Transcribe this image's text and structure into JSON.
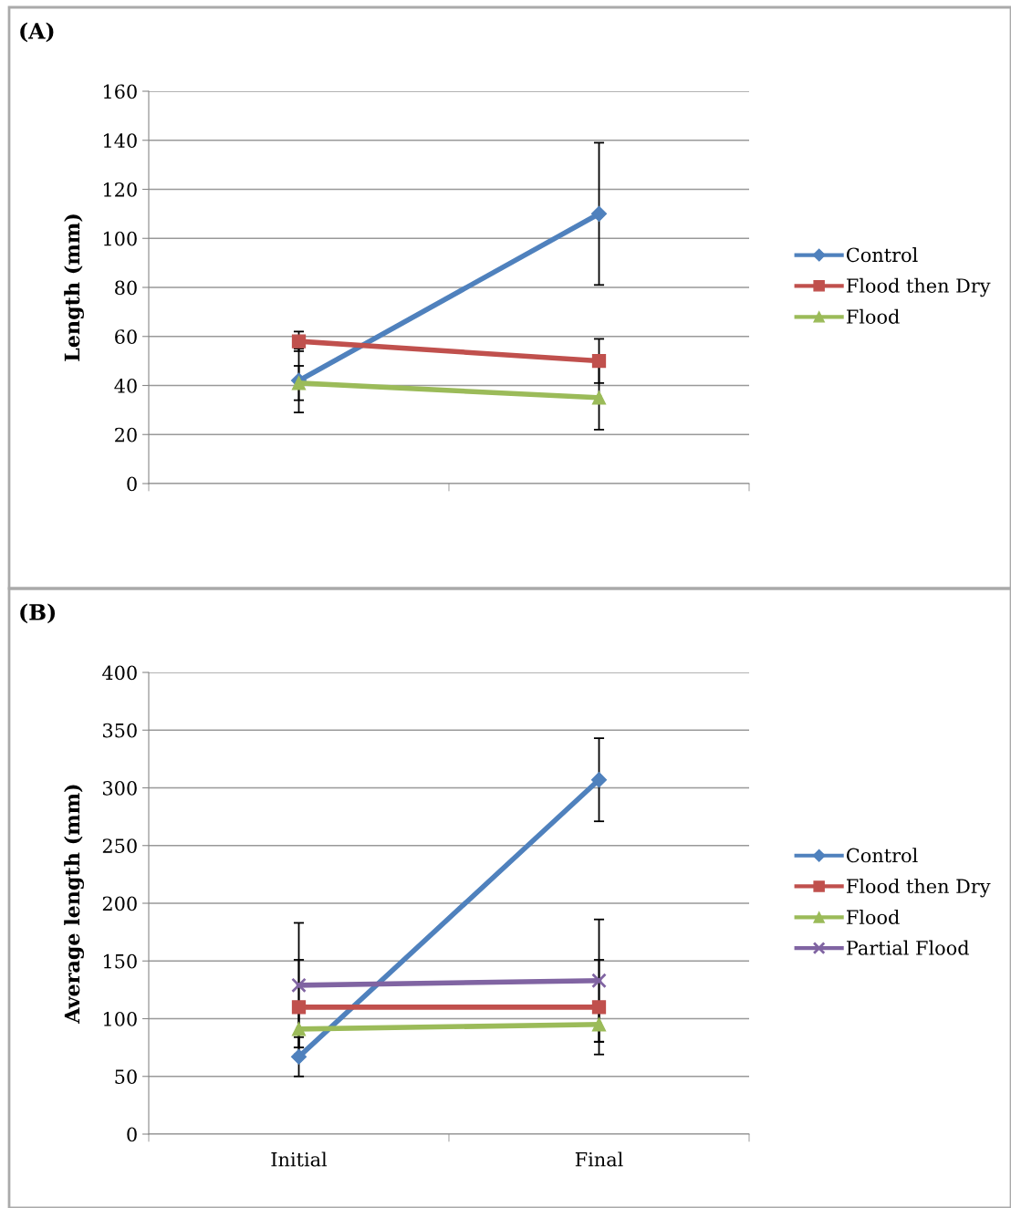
{
  "chart_data": [
    {
      "type": "line",
      "title": "(A)",
      "ylabel": "Length (mm)",
      "categories": [
        null,
        null
      ],
      "ylim": [
        0,
        160
      ],
      "yticks": [
        0,
        20,
        40,
        60,
        80,
        100,
        120,
        140,
        160
      ],
      "grid": "y",
      "legend": "right",
      "tick_labels": "y",
      "series": [
        {
          "name": "Control",
          "color": "#4f81bd",
          "marker": "diamond",
          "values": [
            42,
            110
          ],
          "errors": [
            13,
            29
          ]
        },
        {
          "name": "Flood then Dry",
          "color": "#c0504d",
          "marker": "square",
          "values": [
            58,
            50
          ],
          "errors": [
            4,
            9
          ]
        },
        {
          "name": "Flood",
          "color": "#9bbb59",
          "marker": "triangle",
          "values": [
            41,
            35
          ],
          "errors": [
            7,
            13
          ]
        }
      ]
    },
    {
      "type": "line",
      "title": "(B)",
      "ylabel": "Average length (mm)",
      "categories": [
        "Initial",
        "Final"
      ],
      "ylim": [
        0,
        400
      ],
      "yticks": [
        0,
        50,
        100,
        150,
        200,
        250,
        300,
        350,
        400
      ],
      "grid": "y",
      "legend": "right",
      "series": [
        {
          "name": "Control",
          "color": "#4f81bd",
          "marker": "diamond",
          "values": [
            67,
            307
          ],
          "errors": [
            17,
            36
          ]
        },
        {
          "name": "Flood then Dry",
          "color": "#c0504d",
          "marker": "square",
          "values": [
            110,
            110
          ],
          "errors": [
            41,
            41
          ]
        },
        {
          "name": "Flood",
          "color": "#9bbb59",
          "marker": "triangle",
          "values": [
            91,
            95
          ],
          "errors": [
            16,
            15
          ]
        },
        {
          "name": "Partial Flood",
          "color": "#8064a2",
          "marker": "cross",
          "values": [
            129,
            133
          ],
          "errors": [
            54,
            53
          ]
        }
      ]
    }
  ]
}
